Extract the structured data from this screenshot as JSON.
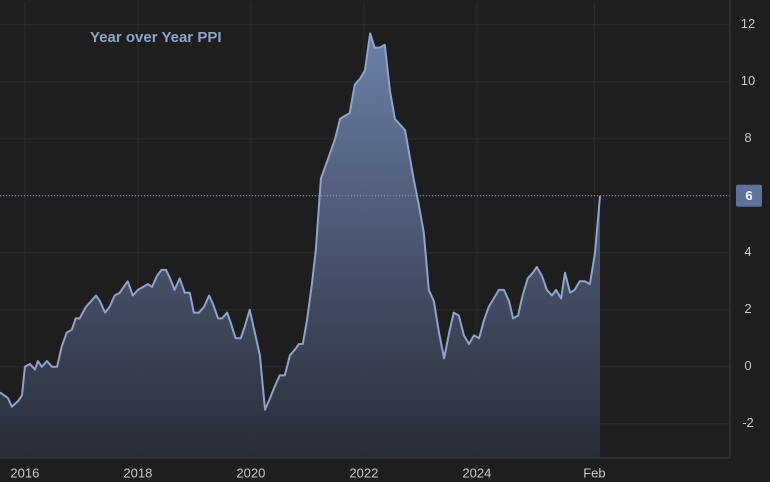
{
  "chart_data": {
    "type": "area",
    "title": "Year over Year PPI",
    "x": [
      2015.56,
      2015.7,
      2015.77,
      2015.88,
      2015.95,
      2016.0,
      2016.09,
      2016.18,
      2016.23,
      2016.3,
      2016.39,
      2016.48,
      2016.57,
      2016.65,
      2016.74,
      2016.83,
      2016.9,
      2016.97,
      2017.08,
      2017.17,
      2017.26,
      2017.33,
      2017.42,
      2017.5,
      2017.59,
      2017.68,
      2017.75,
      2017.82,
      2017.91,
      2018.0,
      2018.09,
      2018.18,
      2018.25,
      2018.34,
      2018.42,
      2018.5,
      2018.57,
      2018.65,
      2018.74,
      2018.83,
      2018.92,
      2018.99,
      2019.08,
      2019.17,
      2019.26,
      2019.33,
      2019.42,
      2019.49,
      2019.58,
      2019.65,
      2019.73,
      2019.82,
      2019.89,
      2019.98,
      2020.07,
      2020.16,
      2020.25,
      2020.34,
      2020.42,
      2020.51,
      2020.6,
      2020.69,
      2020.78,
      2020.85,
      2020.92,
      2020.99,
      2021.08,
      2021.15,
      2021.24,
      2021.33,
      2021.42,
      2021.49,
      2021.58,
      2021.66,
      2021.75,
      2021.84,
      2021.93,
      2022.02,
      2022.11,
      2022.19,
      2022.28,
      2022.37,
      2022.46,
      2022.55,
      2022.64,
      2022.73,
      2022.8,
      2022.88,
      2022.97,
      2023.06,
      2023.15,
      2023.24,
      2023.33,
      2023.42,
      2023.5,
      2023.59,
      2023.68,
      2023.77,
      2023.86,
      2023.95,
      2024.04,
      2024.12,
      2024.21,
      2024.3,
      2024.39,
      2024.48,
      2024.57,
      2024.64,
      2024.73,
      2024.81,
      2024.9,
      2024.99,
      2025.06,
      2025.15,
      2025.24,
      2025.33,
      2025.4,
      2025.49,
      2025.56,
      2025.65,
      2025.73,
      2025.82,
      2025.91,
      2026.0,
      2026.09,
      2026.18
    ],
    "values": [
      -0.9,
      -1.1,
      -1.4,
      -1.2,
      -1.0,
      0,
      0.1,
      -0.1,
      0.2,
      0,
      0.2,
      0,
      0,
      0.7,
      1.2,
      1.3,
      1.7,
      1.7,
      2.1,
      2.3,
      2.5,
      2.3,
      1.9,
      2.1,
      2.5,
      2.6,
      2.8,
      3.0,
      2.5,
      2.7,
      2.8,
      2.9,
      2.8,
      3.2,
      3.4,
      3.4,
      3.1,
      2.7,
      3.1,
      2.6,
      2.6,
      1.9,
      1.9,
      2.1,
      2.5,
      2.2,
      1.7,
      1.7,
      1.9,
      1.5,
      1.0,
      1.0,
      1.4,
      2.0,
      1.2,
      0.4,
      -1.5,
      -1.1,
      -0.7,
      -0.3,
      -0.3,
      0.4,
      0.6,
      0.8,
      0.8,
      1.6,
      2.9,
      4.1,
      6.6,
      7.1,
      7.6,
      8.0,
      8.7,
      8.8,
      8.9,
      9.9,
      10.1,
      10.4,
      11.7,
      11.2,
      11.2,
      11.3,
      9.7,
      8.7,
      8.5,
      8.3,
      7.5,
      6.6,
      5.7,
      4.7,
      2.7,
      2.3,
      1.2,
      0.3,
      1.1,
      1.9,
      1.8,
      1.1,
      0.8,
      1.1,
      1.0,
      1.6,
      2.1,
      2.4,
      2.7,
      2.7,
      2.3,
      1.7,
      1.8,
      2.5,
      3.1,
      3.3,
      3.5,
      3.2,
      2.7,
      2.5,
      2.7,
      2.4,
      3.3,
      2.6,
      2.7,
      3.0,
      3.0,
      2.9,
      4.0,
      6.0
    ],
    "color": "#8fa3cc",
    "xlim": [
      2015.56,
      2028.48
    ],
    "xticks": [
      2016,
      2018,
      2020,
      2022,
      2024,
      {
        "value": 2026.08,
        "label": "Feb"
      }
    ],
    "ylim": [
      -3.2,
      12.8
    ],
    "yticks": [
      -2,
      0,
      2,
      4,
      6,
      8,
      10,
      12
    ],
    "grid": true
  }
}
